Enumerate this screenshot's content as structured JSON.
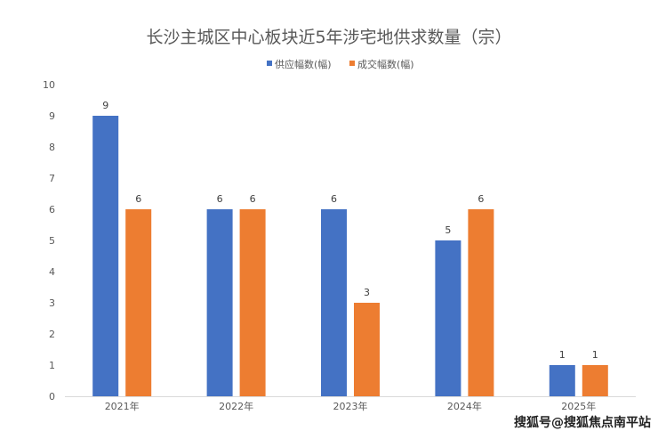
{
  "chart_data": {
    "type": "bar",
    "title": "长沙主城区中心板块近5年涉宅地供求数量（宗）",
    "categories": [
      "2021年",
      "2022年",
      "2023年",
      "2024年",
      "2025年"
    ],
    "series": [
      {
        "name": "供应幅数(幅)",
        "values": [
          9,
          6,
          6,
          5,
          1
        ],
        "color": "#4472C4"
      },
      {
        "name": "成交幅数(幅)",
        "values": [
          6,
          6,
          3,
          6,
          1
        ],
        "color": "#ED7D31"
      }
    ],
    "ylim": [
      0,
      10
    ],
    "yticks": [
      0,
      1,
      2,
      3,
      4,
      5,
      6,
      7,
      8,
      9,
      10
    ],
    "xlabel": "",
    "ylabel": "",
    "grid": false,
    "legend": "top-center"
  },
  "watermark": "搜狐号@搜狐焦点南平站"
}
